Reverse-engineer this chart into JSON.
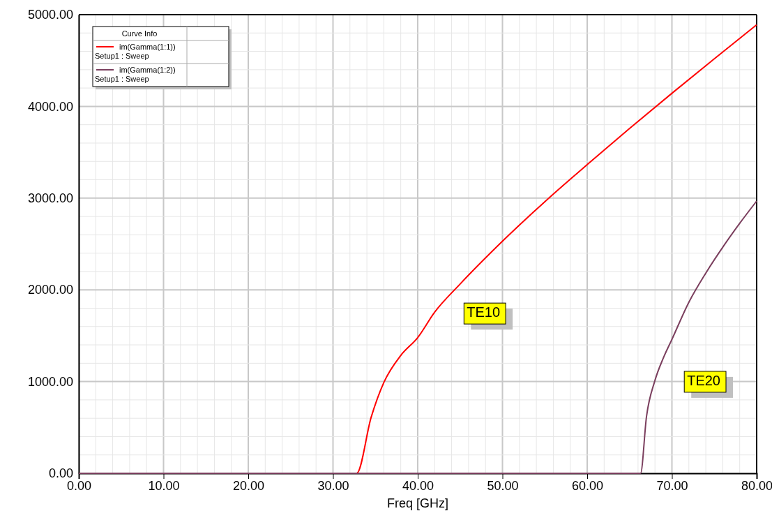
{
  "chart_data": {
    "type": "line",
    "xlabel": "Freq [GHz]",
    "legend_title": "Curve Info",
    "legend": "top left",
    "grid": true,
    "marker": "none",
    "line_style": "solid",
    "xlim": [
      0,
      80
    ],
    "ylim": [
      0,
      5000
    ],
    "xticks": [
      {
        "value": 0,
        "label": "0.00"
      },
      {
        "value": 10,
        "label": "10.00"
      },
      {
        "value": 20,
        "label": "20.00"
      },
      {
        "value": 30,
        "label": "30.00"
      },
      {
        "value": 40,
        "label": "40.00"
      },
      {
        "value": 50,
        "label": "50.00"
      },
      {
        "value": 60,
        "label": "60.00"
      },
      {
        "value": 70,
        "label": "70.00"
      },
      {
        "value": 80,
        "label": "80.00"
      }
    ],
    "yticks": [
      {
        "value": 0,
        "label": "0.00"
      },
      {
        "value": 1000,
        "label": "1000.00"
      },
      {
        "value": 2000,
        "label": "2000.00"
      },
      {
        "value": 3000,
        "label": "3000.00"
      },
      {
        "value": 4000,
        "label": "4000.00"
      },
      {
        "value": 5000,
        "label": "5000.00"
      }
    ],
    "series": [
      {
        "name": "im(Gamma(1:1))\nSetup1 : Sweep",
        "color": "#ff0000",
        "x": [
          0,
          32.8,
          34.5,
          36,
          38,
          40,
          42,
          45,
          50,
          55,
          60,
          65,
          70,
          75,
          80
        ],
        "values": [
          0,
          0,
          610,
          990,
          1285,
          1480,
          1757,
          2063,
          2530,
          2961,
          3366,
          3760,
          4143,
          4518,
          4890
        ]
      },
      {
        "name": "im(Gamma(1:2))\nSetup1 : Sweep",
        "color": "#7b3f5e",
        "x": [
          0,
          66.3,
          67,
          68,
          69,
          70,
          72,
          74,
          76,
          78,
          80
        ],
        "values": [
          0,
          0,
          620,
          1013,
          1260,
          1460,
          1865,
          2183,
          2465,
          2725,
          2968
        ]
      }
    ],
    "annotations": [
      "TE10",
      "TE20"
    ]
  }
}
